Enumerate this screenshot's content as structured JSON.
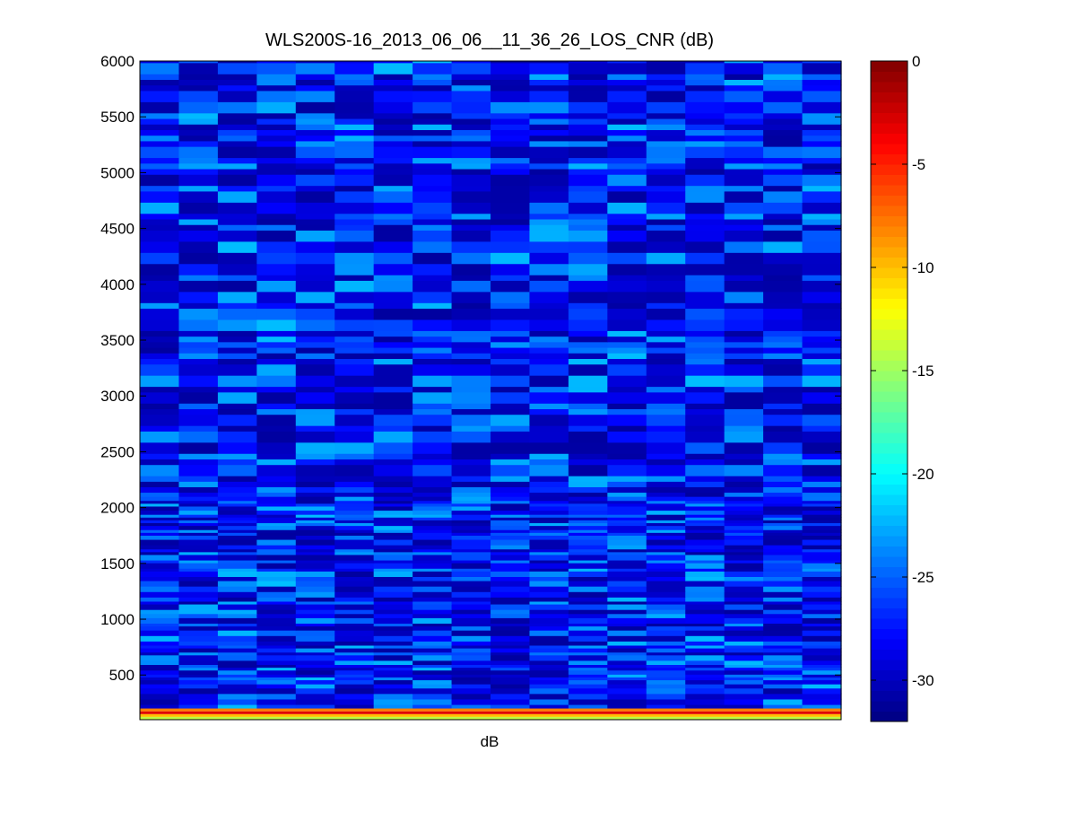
{
  "chart_data": {
    "type": "heatmap",
    "title": "WLS200S-16_2013_06_06__11_36_26_LOS_CNR (dB)",
    "xlabel": "dB",
    "ylabel": "",
    "ylim": [
      100,
      6000
    ],
    "yticks": [
      500,
      1000,
      1500,
      2000,
      2500,
      3000,
      3500,
      4000,
      4500,
      5000,
      5500,
      6000
    ],
    "colorbar": {
      "colormap": "jet",
      "clim": [
        -32,
        0
      ],
      "ticks": [
        0,
        -5,
        -10,
        -15,
        -20,
        -25,
        -30
      ]
    },
    "grid": false,
    "n_columns": 18,
    "near_range_bands": [
      {
        "y": [
          100,
          125
        ],
        "value": -14
      },
      {
        "y": [
          125,
          150
        ],
        "value": -10
      },
      {
        "y": [
          150,
          175
        ],
        "value": -3
      },
      {
        "y": [
          175,
          200
        ],
        "value": -8
      }
    ],
    "background_value_range": [
      -31,
      -22
    ]
  }
}
